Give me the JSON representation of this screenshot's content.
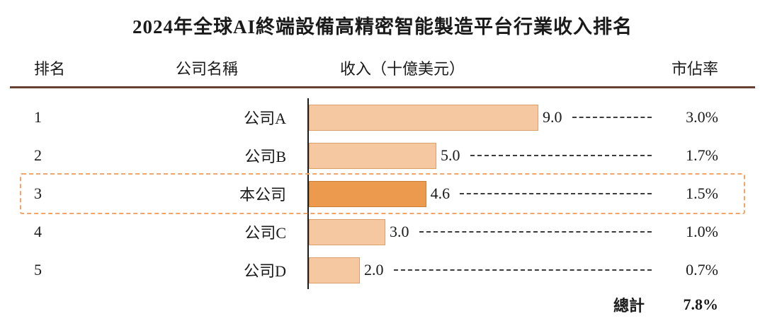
{
  "title": "2024年全球AI終端設備高精密智能製造平台行業收入排名",
  "headers": {
    "rank": "排名",
    "company": "公司名稱",
    "revenue": "收入（十億美元）",
    "share": "市佔率"
  },
  "total_label": "總計",
  "total_share": "7.8%",
  "colors": {
    "bar-fill": "#f6c8a2",
    "bar-border": "#d9a06b",
    "bar-hl-fill": "#ec9a4d",
    "bar-hl-border": "#c97f35",
    "rule": "#664032",
    "hl-box": "#f3a469"
  },
  "chart_data": {
    "type": "bar",
    "orientation": "horizontal",
    "title": "2024年全球AI終端設備高精密智能製造平台行業收入排名",
    "xlabel": "收入（十億美元）",
    "xlim": [
      0,
      9.6
    ],
    "ranks": [
      1,
      2,
      3,
      4,
      5
    ],
    "categories": [
      "公司A",
      "公司B",
      "本公司",
      "公司C",
      "公司D"
    ],
    "values": [
      9.0,
      5.0,
      4.6,
      3.0,
      2.0
    ],
    "value_labels": [
      "9.0",
      "5.0",
      "4.6",
      "3.0",
      "2.0"
    ],
    "shares": [
      "3.0%",
      "1.7%",
      "1.5%",
      "1.0%",
      "0.7%"
    ],
    "highlighted_index": 2,
    "highlighted_label": "本公司",
    "total": {
      "label": "總計",
      "share": "7.8%"
    },
    "legend": [],
    "grid": false
  }
}
